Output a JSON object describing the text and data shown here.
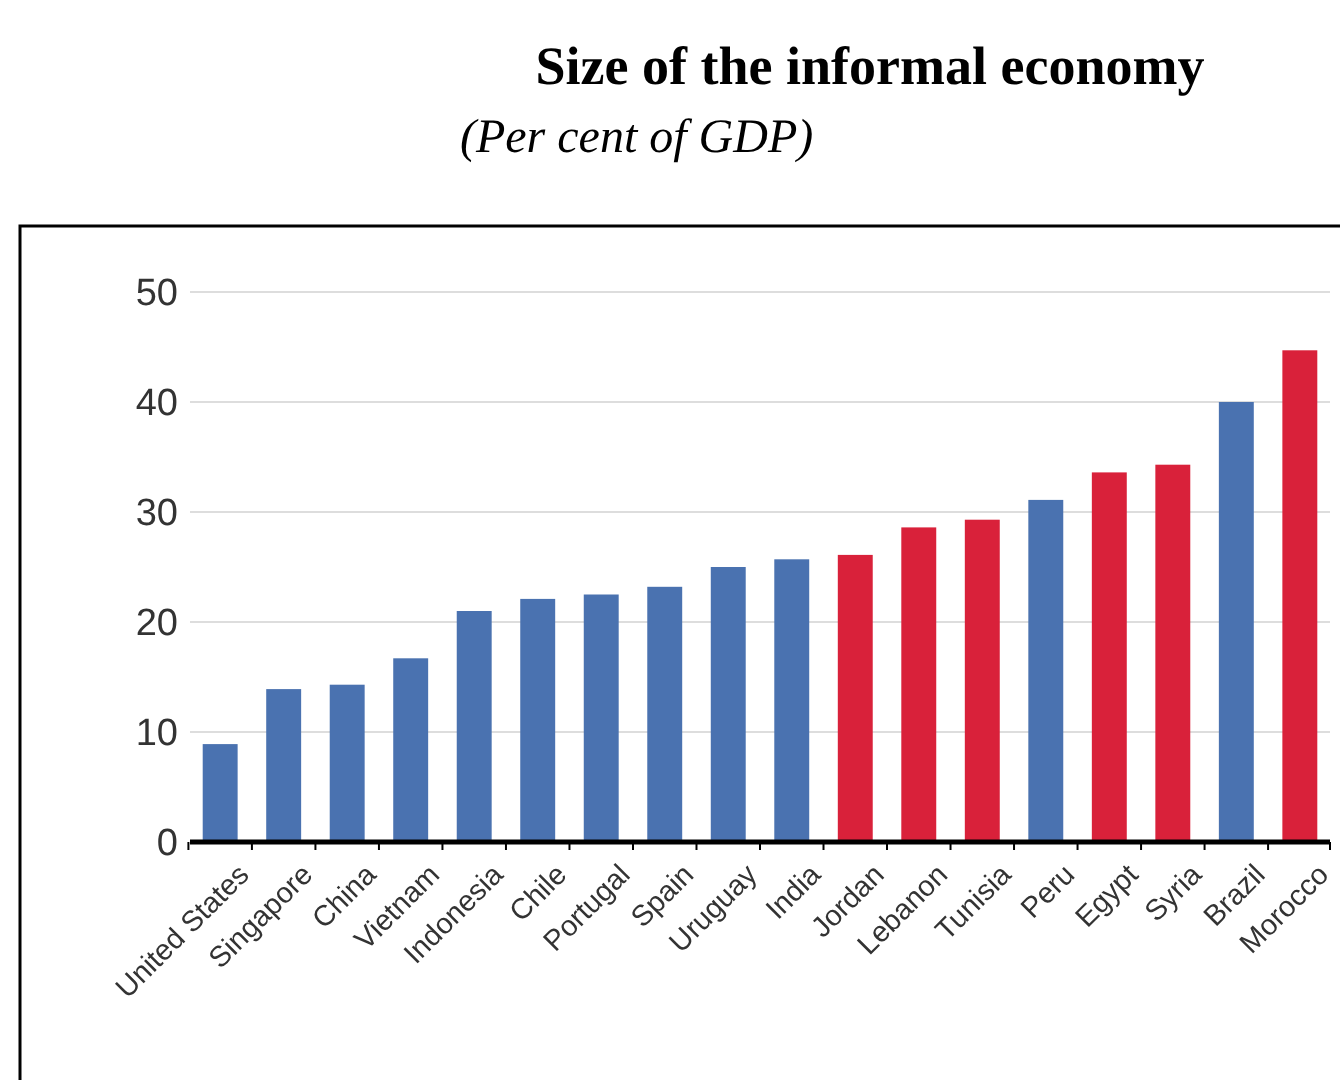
{
  "chart_data": {
    "type": "bar",
    "title": "Size of the informal economy",
    "subtitle": "(Per cent of GDP)",
    "categories": [
      "United States",
      "Singapore",
      "China",
      "Vietnam",
      "Indonesia",
      "Chile",
      "Portugal",
      "Spain",
      "Uruguay",
      "India",
      "Jordan",
      "Lebanon",
      "Tunisia",
      "Peru",
      "Egypt",
      "Syria",
      "Brazil",
      "Morocco"
    ],
    "values": [
      8.9,
      13.9,
      14.3,
      16.7,
      21.0,
      22.1,
      22.5,
      23.2,
      25.0,
      25.7,
      26.1,
      28.6,
      29.3,
      31.1,
      33.6,
      34.3,
      40.0,
      44.7
    ],
    "colors": [
      "#4a72b0",
      "#4a72b0",
      "#4a72b0",
      "#4a72b0",
      "#4a72b0",
      "#4a72b0",
      "#4a72b0",
      "#4a72b0",
      "#4a72b0",
      "#4a72b0",
      "#d9213a",
      "#d9213a",
      "#d9213a",
      "#4a72b0",
      "#d9213a",
      "#d9213a",
      "#4a72b0",
      "#d9213a"
    ],
    "ylim": [
      0,
      50
    ],
    "yticks": [
      0,
      10,
      20,
      30,
      40,
      50
    ],
    "grid": "y"
  }
}
